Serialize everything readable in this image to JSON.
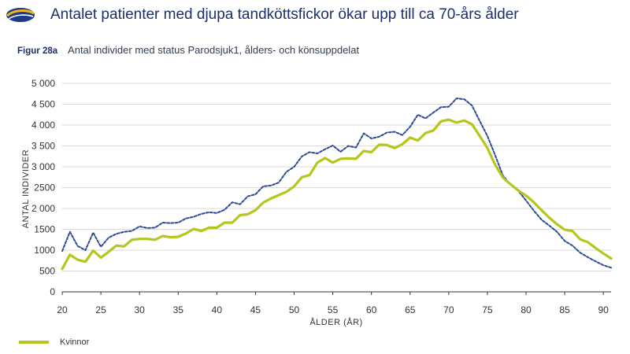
{
  "header": {
    "title": "Antalet patienter med djupa tandköttsfickor ökar upp till ca 70-års ålder",
    "logo_icon": "striped-oval-logo"
  },
  "figure": {
    "label": "Figur 28a",
    "caption": "Antal individer med status Parodsjuk1, ålders- och könsuppdelat"
  },
  "colors": {
    "women": "#b5c61d",
    "men": "#2d4a97",
    "grid": "#d9d9d9",
    "axis": "#333333",
    "title": "#1d2f6b"
  },
  "chart_data": {
    "type": "line",
    "title": "",
    "xlabel": "ÅLDER (ÅR)",
    "ylabel": "ANTAL INDIVIDER",
    "xlim": [
      20,
      91
    ],
    "ylim": [
      0,
      5000
    ],
    "xticks": [
      20,
      25,
      30,
      35,
      40,
      45,
      50,
      55,
      60,
      65,
      70,
      75,
      80,
      85,
      90
    ],
    "yticks": [
      0,
      500,
      1000,
      1500,
      2000,
      2500,
      3000,
      3500,
      4000,
      4500,
      5000
    ],
    "ytick_labels": [
      "0",
      "500",
      "1000",
      "1500",
      "2 000",
      "2500",
      "3 000",
      "3 500",
      "4 000",
      "4 500",
      "5 000"
    ],
    "grid": true,
    "legend_position": "bottom-left",
    "series": [
      {
        "name": "Kvinnor",
        "style": "solid",
        "x": [
          20,
          21,
          22,
          23,
          24,
          25,
          26,
          27,
          28,
          29,
          30,
          31,
          32,
          33,
          34,
          35,
          36,
          37,
          38,
          39,
          40,
          41,
          42,
          43,
          44,
          45,
          46,
          47,
          48,
          49,
          50,
          51,
          52,
          53,
          54,
          55,
          56,
          57,
          58,
          59,
          60,
          61,
          62,
          63,
          64,
          65,
          66,
          67,
          68,
          69,
          70,
          71,
          72,
          73,
          74,
          75,
          76,
          77,
          78,
          79,
          80,
          81,
          82,
          83,
          84,
          85,
          86,
          87,
          88,
          89,
          90,
          91
        ],
        "values": [
          550,
          890,
          770,
          720,
          990,
          820,
          960,
          1110,
          1090,
          1250,
          1270,
          1270,
          1250,
          1340,
          1310,
          1320,
          1400,
          1510,
          1460,
          1540,
          1540,
          1660,
          1660,
          1840,
          1860,
          1960,
          2140,
          2240,
          2320,
          2400,
          2530,
          2750,
          2800,
          3100,
          3210,
          3100,
          3190,
          3200,
          3190,
          3380,
          3350,
          3530,
          3520,
          3450,
          3540,
          3700,
          3630,
          3810,
          3870,
          4090,
          4130,
          4060,
          4110,
          4020,
          3740,
          3450,
          3050,
          2740,
          2580,
          2430,
          2310,
          2150,
          1960,
          1780,
          1620,
          1490,
          1460,
          1260,
          1190,
          1050,
          920,
          800
        ]
      },
      {
        "name": "",
        "style": "dotted",
        "x": [
          20,
          21,
          22,
          23,
          24,
          25,
          26,
          27,
          28,
          29,
          30,
          31,
          32,
          33,
          34,
          35,
          36,
          37,
          38,
          39,
          40,
          41,
          42,
          43,
          44,
          45,
          46,
          47,
          48,
          49,
          50,
          51,
          52,
          53,
          54,
          55,
          56,
          57,
          58,
          59,
          60,
          61,
          62,
          63,
          64,
          65,
          66,
          67,
          68,
          69,
          70,
          71,
          72,
          73,
          74,
          75,
          76,
          77,
          78,
          79,
          80,
          81,
          82,
          83,
          84,
          85,
          86,
          87,
          88,
          89,
          90,
          91
        ],
        "values": [
          980,
          1440,
          1100,
          1000,
          1420,
          1080,
          1300,
          1390,
          1440,
          1460,
          1570,
          1530,
          1540,
          1660,
          1650,
          1660,
          1760,
          1800,
          1870,
          1910,
          1890,
          1970,
          2150,
          2100,
          2290,
          2340,
          2530,
          2550,
          2620,
          2880,
          3000,
          3250,
          3350,
          3320,
          3420,
          3510,
          3360,
          3500,
          3460,
          3800,
          3680,
          3720,
          3820,
          3840,
          3760,
          3960,
          4250,
          4160,
          4300,
          4430,
          4440,
          4640,
          4620,
          4470,
          4100,
          3740,
          3280,
          2790,
          2570,
          2420,
          2190,
          1950,
          1730,
          1590,
          1440,
          1220,
          1110,
          940,
          830,
          730,
          640,
          580
        ]
      }
    ]
  },
  "legend": {
    "women_label": "Kvinnor"
  }
}
